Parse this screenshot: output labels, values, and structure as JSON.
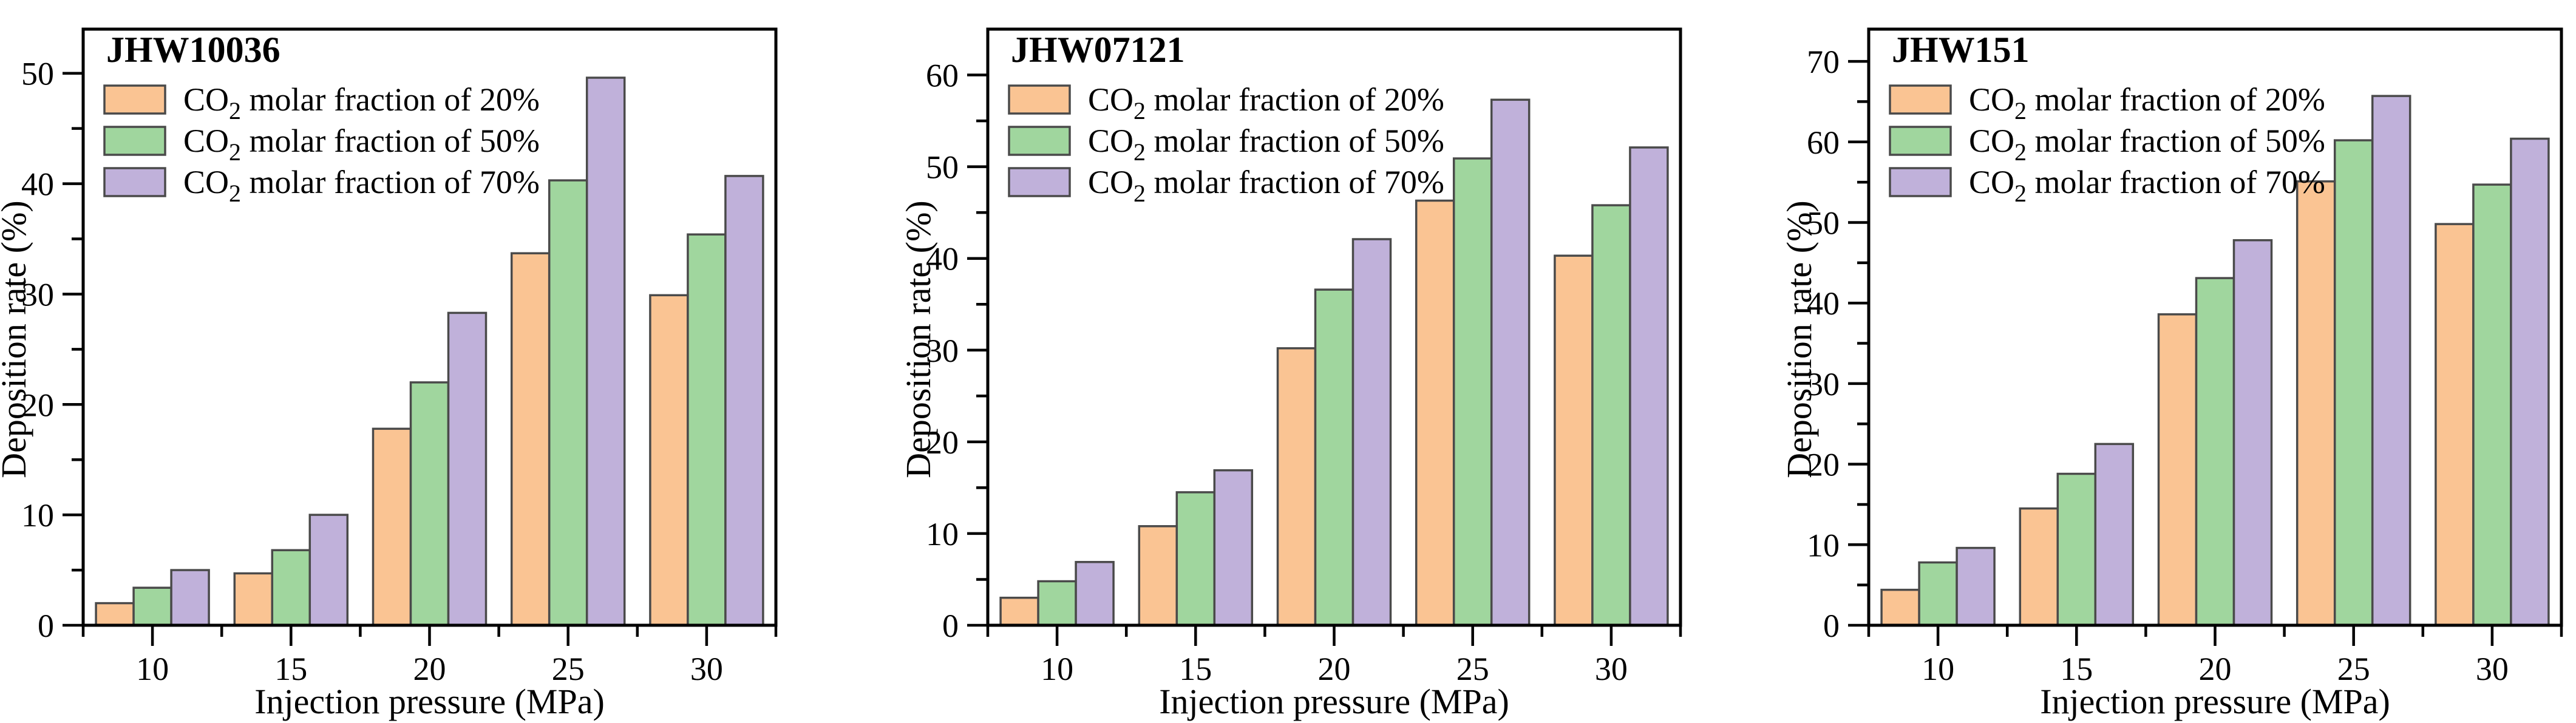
{
  "figure": {
    "background": "#ffffff",
    "axis_color": "#000000",
    "bar_edge_color": "#4a4a4a",
    "series_colors": [
      "#fac493",
      "#a0d69e",
      "#c0b1da"
    ],
    "x_axis_label": "Injection pressure (MPa)",
    "y_axis_label": "Deposition rate (%)",
    "legend_labels": [
      {
        "prefix": "CO",
        "sub": "2",
        "suffix": " molar fraction of 20%"
      },
      {
        "prefix": "CO",
        "sub": "2",
        "suffix": " molar fraction of 50%"
      },
      {
        "prefix": "CO",
        "sub": "2",
        "suffix": " molar fraction of 70%"
      }
    ]
  },
  "chart_data": [
    {
      "type": "bar",
      "title": "JHW10036",
      "xlabel": "Injection pressure (MPa)",
      "ylabel": "Deposition rate (%)",
      "categories": [
        "10",
        "15",
        "20",
        "25",
        "30"
      ],
      "ylim": [
        0,
        54
      ],
      "y_ticks_max": 50,
      "y_tick_step": 10,
      "y_minor_step": 5,
      "grid": false,
      "legend_position": "upper-left",
      "series": [
        {
          "name": "CO2 molar fraction of 20%",
          "values": [
            2.0,
            4.7,
            17.8,
            33.7,
            29.9
          ]
        },
        {
          "name": "CO2 molar fraction of 50%",
          "values": [
            3.4,
            6.8,
            22.0,
            40.3,
            35.4
          ]
        },
        {
          "name": "CO2 molar fraction of 70%",
          "values": [
            5.0,
            10.0,
            28.3,
            49.6,
            40.7
          ]
        }
      ]
    },
    {
      "type": "bar",
      "title": "JHW07121",
      "xlabel": "Injection pressure (MPa)",
      "ylabel": "Deposition rate (%)",
      "categories": [
        "10",
        "15",
        "20",
        "25",
        "30"
      ],
      "ylim": [
        0,
        65
      ],
      "y_ticks_max": 60,
      "y_tick_step": 10,
      "y_minor_step": 5,
      "grid": false,
      "legend_position": "upper-left",
      "series": [
        {
          "name": "CO2 molar fraction of 20%",
          "values": [
            3.0,
            10.8,
            30.2,
            46.3,
            40.3
          ]
        },
        {
          "name": "CO2 molar fraction of 50%",
          "values": [
            4.8,
            14.5,
            36.6,
            50.9,
            45.8
          ]
        },
        {
          "name": "CO2 molar fraction of 70%",
          "values": [
            6.9,
            16.9,
            42.1,
            57.3,
            52.1
          ]
        }
      ]
    },
    {
      "type": "bar",
      "title": "JHW151",
      "xlabel": "Injection pressure (MPa)",
      "ylabel": "Deposition rate (%)",
      "categories": [
        "10",
        "15",
        "20",
        "25",
        "30"
      ],
      "ylim": [
        0,
        74
      ],
      "y_ticks_max": 70,
      "y_tick_step": 10,
      "y_minor_step": 5,
      "grid": false,
      "legend_position": "upper-left",
      "series": [
        {
          "name": "CO2 molar fraction of 20%",
          "values": [
            4.4,
            14.5,
            38.6,
            55.1,
            49.8
          ]
        },
        {
          "name": "CO2 molar fraction of 50%",
          "values": [
            7.8,
            18.8,
            43.1,
            60.2,
            54.7
          ]
        },
        {
          "name": "CO2 molar fraction of 70%",
          "values": [
            9.6,
            22.5,
            47.8,
            65.7,
            60.4
          ]
        }
      ]
    }
  ]
}
